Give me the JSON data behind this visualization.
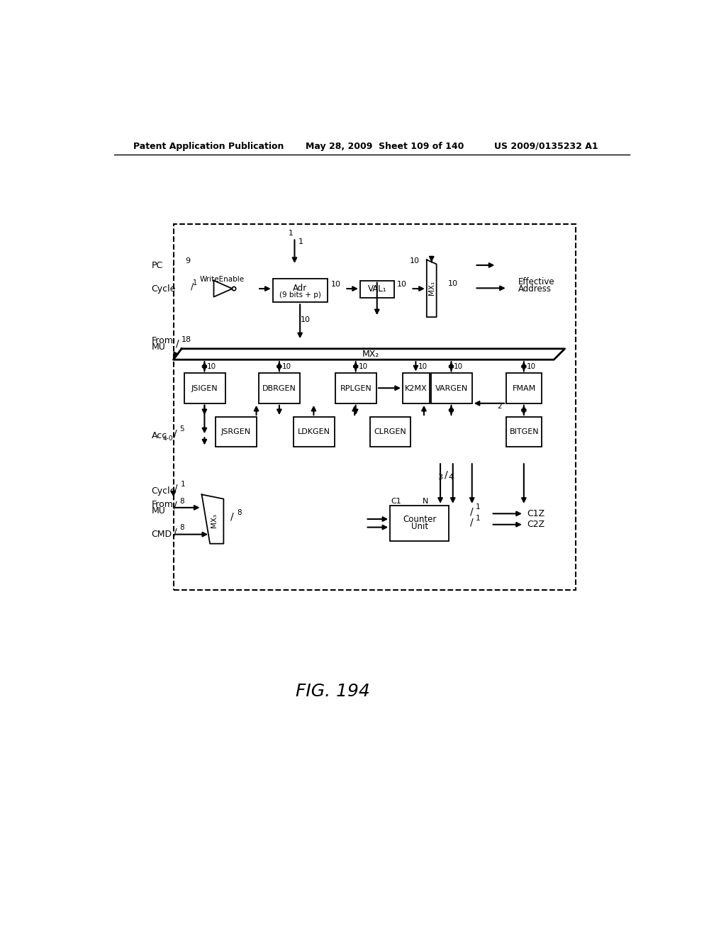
{
  "bg_color": "#ffffff",
  "header_left": "Patent Application Publication",
  "header_mid": "May 28, 2009  Sheet 109 of 140",
  "header_right": "US 2009/0135232 A1",
  "fig_label": "FIG. 194",
  "line_color": "#000000"
}
